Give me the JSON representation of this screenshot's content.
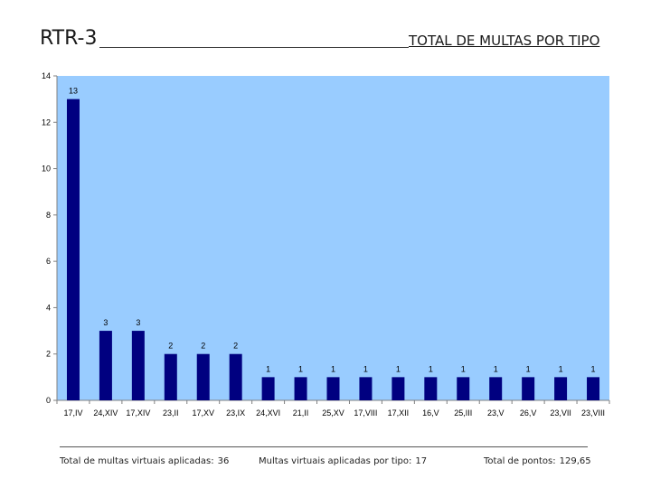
{
  "header": {
    "code": "RTR-3",
    "title": "TOTAL DE MULTAS POR TIPO"
  },
  "chart_data": {
    "type": "bar",
    "categories": [
      "17,IV",
      "24,XIV",
      "17,XIV",
      "23,II",
      "17,XV",
      "23,IX",
      "24,XVI",
      "21,II",
      "25,XV",
      "17,VIII",
      "17,XII",
      "16,V",
      "25,III",
      "23,V",
      "26,V",
      "23,VII",
      "23,VIII"
    ],
    "values": [
      13,
      3,
      3,
      2,
      2,
      2,
      1,
      1,
      1,
      1,
      1,
      1,
      1,
      1,
      1,
      1,
      1
    ],
    "ylim": [
      0,
      14
    ],
    "yticks": [
      0,
      2,
      4,
      6,
      8,
      10,
      12,
      14
    ],
    "title": "",
    "xlabel": "",
    "ylabel": "",
    "grid": false,
    "legend": "none",
    "colors": {
      "plot_bg": "#99ccff",
      "bar": "#000080",
      "text": "#000000"
    }
  },
  "footer": {
    "total_label": "Total de multas virtuais aplicadas:",
    "total_value": "36",
    "by_type_label": "Multas virtuais aplicadas por tipo:",
    "by_type_value": "17",
    "points_label": "Total de pontos:",
    "points_value": "129,65"
  }
}
